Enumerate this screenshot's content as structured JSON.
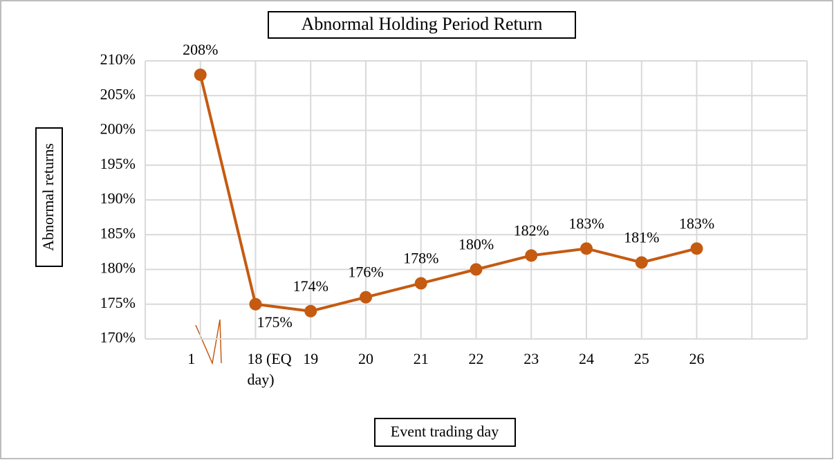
{
  "chart_data": {
    "type": "line",
    "title": "Abnormal Holding Period Return",
    "x_label": "Event trading day",
    "y_label": "Abnormal returns",
    "categories": [
      "1",
      "18 (EQ day)",
      "19",
      "20",
      "21",
      "22",
      "23",
      "24",
      "25",
      "26"
    ],
    "series": [
      {
        "name": "Abnormal Holding Period Return",
        "color": "#c55a11",
        "values": [
          208,
          175,
          174,
          176,
          178,
          180,
          182,
          183,
          181,
          183
        ],
        "value_labels": [
          "208%",
          "175%",
          "174%",
          "176%",
          "178%",
          "180%",
          "182%",
          "183%",
          "181%",
          "183%"
        ]
      }
    ],
    "ylim": [
      170,
      210
    ],
    "yticks": [
      {
        "value": 170,
        "label": "170%"
      },
      {
        "value": 175,
        "label": "175%"
      },
      {
        "value": 180,
        "label": "180%"
      },
      {
        "value": 185,
        "label": "185%"
      },
      {
        "value": 190,
        "label": "190%"
      },
      {
        "value": 195,
        "label": "195%"
      },
      {
        "value": 200,
        "label": "200%"
      },
      {
        "value": 205,
        "label": "205%"
      },
      {
        "value": 210,
        "label": "210%"
      }
    ],
    "grid": true
  }
}
